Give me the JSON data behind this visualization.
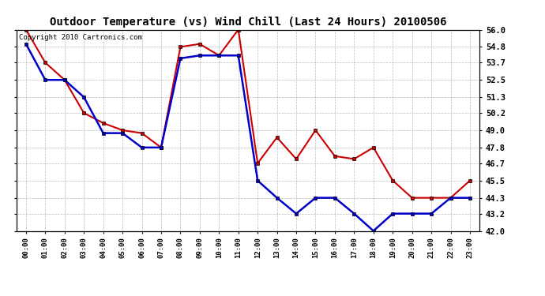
{
  "title": "Outdoor Temperature (vs) Wind Chill (Last 24 Hours) 20100506",
  "copyright_text": "Copyright 2010 Cartronics.com",
  "x_labels": [
    "00:00",
    "01:00",
    "02:00",
    "03:00",
    "04:00",
    "05:00",
    "06:00",
    "07:00",
    "08:00",
    "09:00",
    "10:00",
    "11:00",
    "12:00",
    "13:00",
    "14:00",
    "15:00",
    "16:00",
    "17:00",
    "18:00",
    "19:00",
    "20:00",
    "21:00",
    "22:00",
    "23:00"
  ],
  "temp_red": [
    56.0,
    53.7,
    52.5,
    50.2,
    49.5,
    49.0,
    48.8,
    47.8,
    54.8,
    55.0,
    54.2,
    56.0,
    46.7,
    48.5,
    47.0,
    49.0,
    47.2,
    47.0,
    47.8,
    45.5,
    44.3,
    44.3,
    44.3,
    45.5
  ],
  "temp_blue": [
    55.0,
    52.5,
    52.5,
    51.3,
    48.8,
    48.8,
    47.8,
    47.8,
    54.0,
    54.2,
    54.2,
    54.2,
    45.5,
    44.3,
    43.2,
    44.3,
    44.3,
    43.2,
    42.0,
    43.2,
    43.2,
    43.2,
    44.3,
    44.3
  ],
  "ylim": [
    42.0,
    56.0
  ],
  "yticks": [
    42.0,
    43.2,
    44.3,
    45.5,
    46.7,
    47.8,
    49.0,
    50.2,
    51.3,
    52.5,
    53.7,
    54.8,
    56.0
  ],
  "red_color": "#cc0000",
  "blue_color": "#0000cc",
  "background_color": "#ffffff",
  "grid_color": "#aaaaaa",
  "title_fontsize": 10,
  "copyright_fontsize": 6.5
}
